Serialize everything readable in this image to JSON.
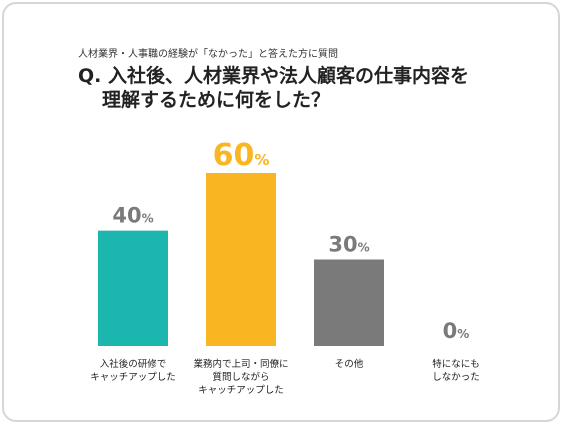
{
  "header": {
    "subtitle": "人材業界・人事職の経験が「なかった」と答えた方に質問",
    "question_line1": "Q. 入社後、人材業界や法人顧客の仕事内容を",
    "question_line2": "理解するために何をした？"
  },
  "chart_data": {
    "type": "bar",
    "categories": [
      [
        "入社後の研修で",
        "キャッチアップした"
      ],
      [
        "業務内で上司・同僚に",
        "質問しながら",
        "キャッチアップした"
      ],
      [
        "その他"
      ],
      [
        "特になにも",
        "しなかった"
      ]
    ],
    "values": [
      40,
      60,
      30,
      0
    ],
    "unit": "%",
    "ylim": [
      0,
      60
    ],
    "colors": [
      "#1bb6ad",
      "#f9b522",
      "#7a7a7a",
      "#7a7a7a"
    ],
    "value_colors": [
      "#7a7a7a",
      "#f9b522",
      "#7a7a7a",
      "#7a7a7a"
    ],
    "grid": false,
    "legend": "none"
  }
}
